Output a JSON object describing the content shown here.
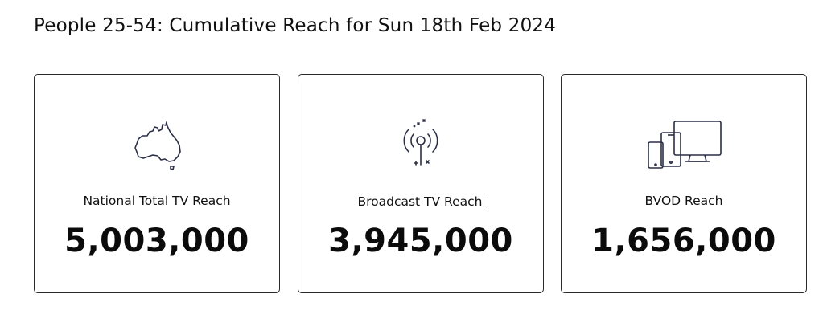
{
  "page": {
    "title": "People 25-54: Cumulative Reach for Sun 18th Feb 2024"
  },
  "cards": [
    {
      "label": "National Total TV Reach",
      "value": "5,003,000",
      "icon": "australia-map-icon"
    },
    {
      "label": "Broadcast TV Reach",
      "value": "3,945,000",
      "icon": "broadcast-antenna-icon"
    },
    {
      "label": "BVOD Reach",
      "value": "1,656,000",
      "icon": "devices-icon"
    }
  ],
  "colors": {
    "text": "#111111",
    "icon_stroke": "#2b2f45",
    "card_border": "#2a2a2a",
    "background": "#ffffff"
  }
}
